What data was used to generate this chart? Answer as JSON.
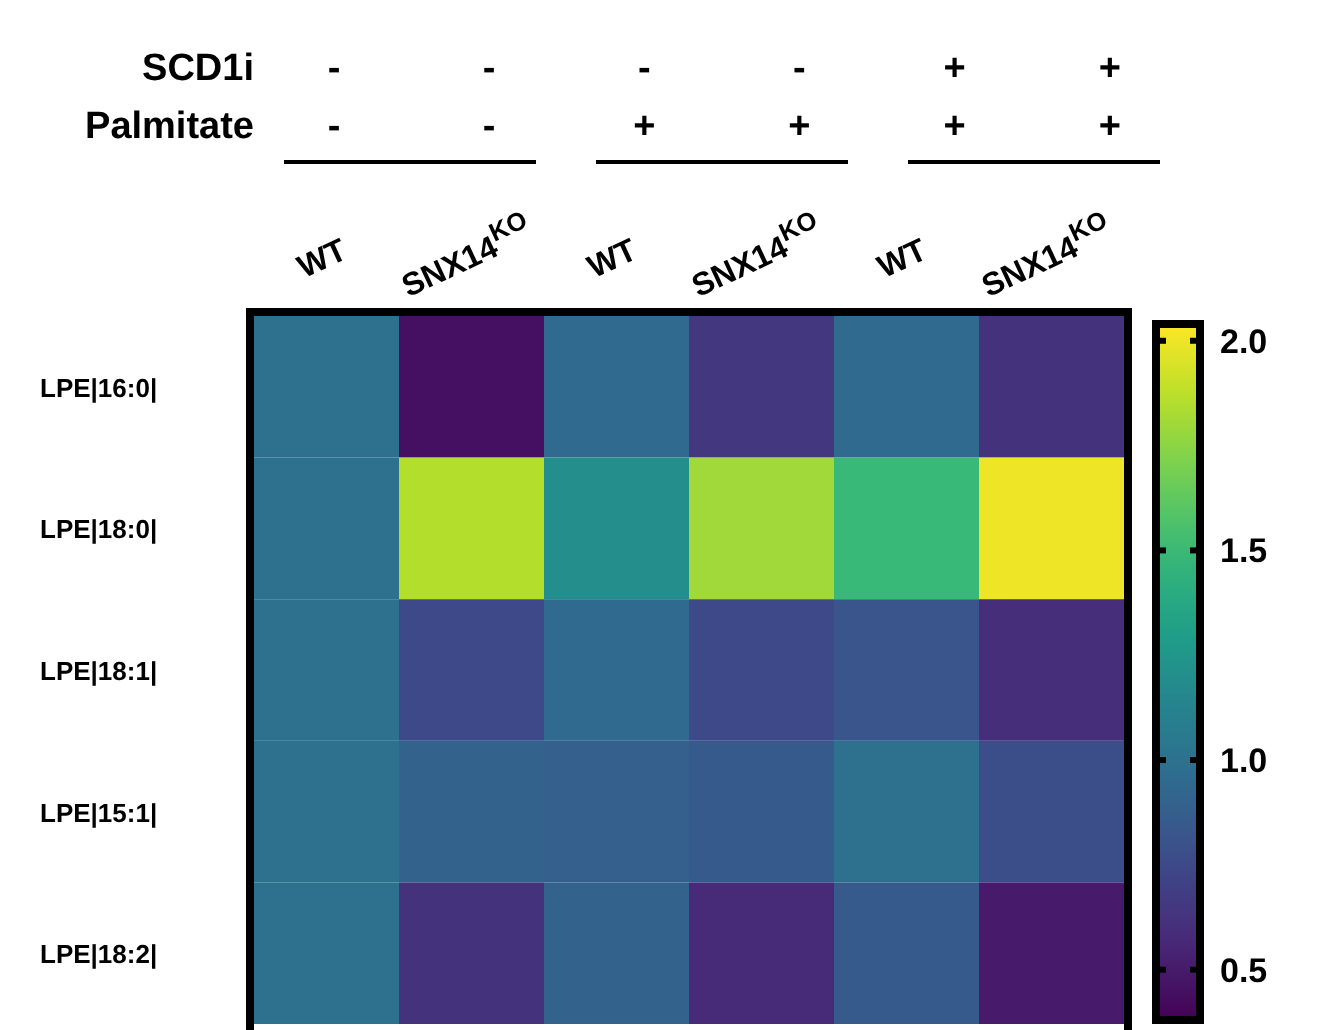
{
  "chart_data": {
    "type": "heatmap",
    "categories": [
      "WT",
      "SNX14$^{KO}$",
      "WT",
      "SNX14$^{KO}$",
      "WT",
      "SNX14$^{KO}$"
    ],
    "y_categories": [
      "LPE|16:0|",
      "LPE|18:0|",
      "LPE|18:1|",
      "LPE|15:1|",
      "LPE|18:2|"
    ],
    "cells": [
      [
        1.0,
        0.45,
        0.95,
        0.65,
        0.95,
        0.62
      ],
      [
        1.0,
        1.85,
        1.2,
        1.8,
        1.5,
        2.0
      ],
      [
        1.0,
        0.75,
        0.95,
        0.75,
        0.82,
        0.6
      ],
      [
        1.0,
        0.9,
        0.88,
        0.85,
        1.0,
        0.78
      ],
      [
        1.0,
        0.62,
        0.9,
        0.58,
        0.85,
        0.5
      ]
    ],
    "clim": [
      0.38,
      2.04
    ],
    "cticks": [
      {
        "value": 0.5,
        "label": "0.5"
      },
      {
        "value": 1,
        "label": "1.0"
      },
      {
        "value": 1.5,
        "label": "1.5"
      },
      {
        "value": 2,
        "label": "2.0"
      }
    ],
    "annotations": [
      "SCD1i",
      "-",
      "-",
      "-",
      "-",
      "+",
      "+",
      "Palmitate",
      "-",
      "-",
      "+",
      "+",
      "+",
      "+"
    ]
  }
}
